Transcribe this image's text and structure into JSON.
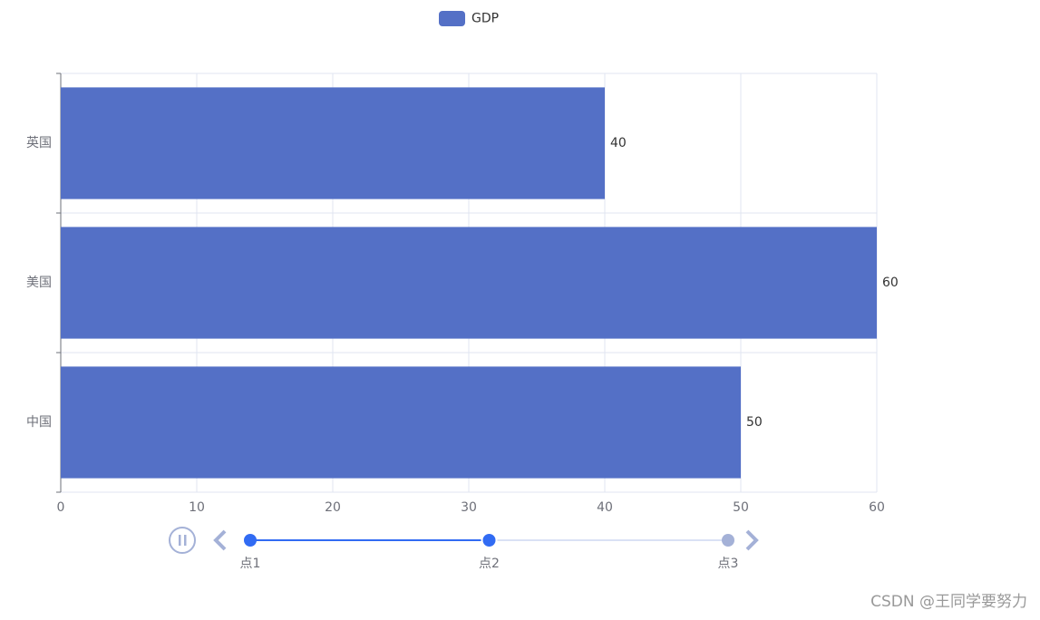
{
  "chart_data": {
    "type": "bar",
    "orientation": "horizontal",
    "legend": "GDP",
    "color": "#5470c6",
    "categories": [
      "中国",
      "美国",
      "英国"
    ],
    "series": [
      {
        "name": "GDP",
        "color": "#5470c6",
        "values": [
          50,
          60,
          40
        ]
      }
    ],
    "xlim": [
      0,
      60
    ],
    "xticks": [
      0,
      10,
      20,
      30,
      40,
      50,
      60
    ],
    "grid": true,
    "timeline": {
      "points": [
        "点1",
        "点2",
        "点3"
      ],
      "current": 1
    }
  },
  "watermark": "CSDN @王同学要努力"
}
